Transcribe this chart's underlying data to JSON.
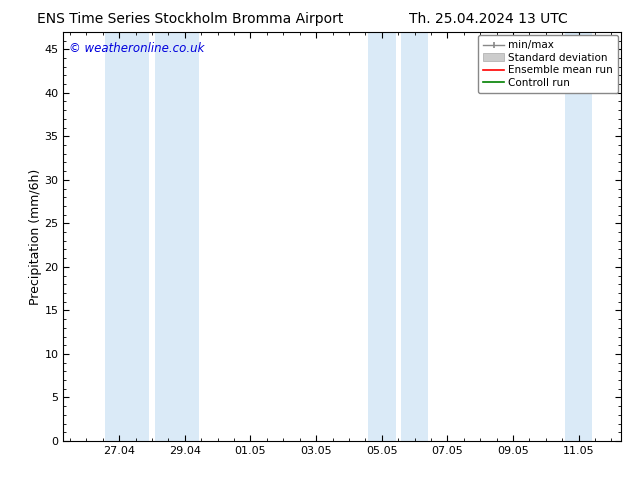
{
  "title_left": "ENS Time Series Stockholm Bromma Airport",
  "title_right": "Th. 25.04.2024 13 UTC",
  "ylabel": "Precipitation (mm/6h)",
  "copyright_text": "© weatheronline.co.uk",
  "copyright_color": "#0000dd",
  "ylim": [
    0,
    47
  ],
  "yticks": [
    0,
    5,
    10,
    15,
    20,
    25,
    30,
    35,
    40,
    45
  ],
  "background_color": "#ffffff",
  "plot_bg_color": "#ffffff",
  "shaded_band_color": "#daeaf7",
  "shaded_bands": [
    {
      "x_start": 26.58,
      "x_end": 27.92
    },
    {
      "x_start": 28.08,
      "x_end": 29.42
    },
    {
      "x_start": 34.58,
      "x_end": 35.42
    },
    {
      "x_start": 35.58,
      "x_end": 36.42
    },
    {
      "x_start": 40.58,
      "x_end": 41.42
    }
  ],
  "x_tick_labels": [
    "27.04",
    "29.04",
    "01.05",
    "03.05",
    "05.05",
    "07.05",
    "09.05",
    "11.05"
  ],
  "x_tick_positions": [
    27.0,
    29.0,
    31.0,
    33.0,
    35.0,
    37.0,
    39.0,
    41.0
  ],
  "xmin": 25.3,
  "xmax": 42.3,
  "legend_items": [
    {
      "label": "min/max",
      "color": "#888888"
    },
    {
      "label": "Standard deviation",
      "color": "#bbbbbb"
    },
    {
      "label": "Ensemble mean run",
      "color": "#ff0000"
    },
    {
      "label": "Controll run",
      "color": "#008000"
    }
  ],
  "title_fontsize": 10,
  "ylabel_fontsize": 9,
  "tick_fontsize": 8,
  "legend_fontsize": 7.5,
  "copyright_fontsize": 8.5
}
